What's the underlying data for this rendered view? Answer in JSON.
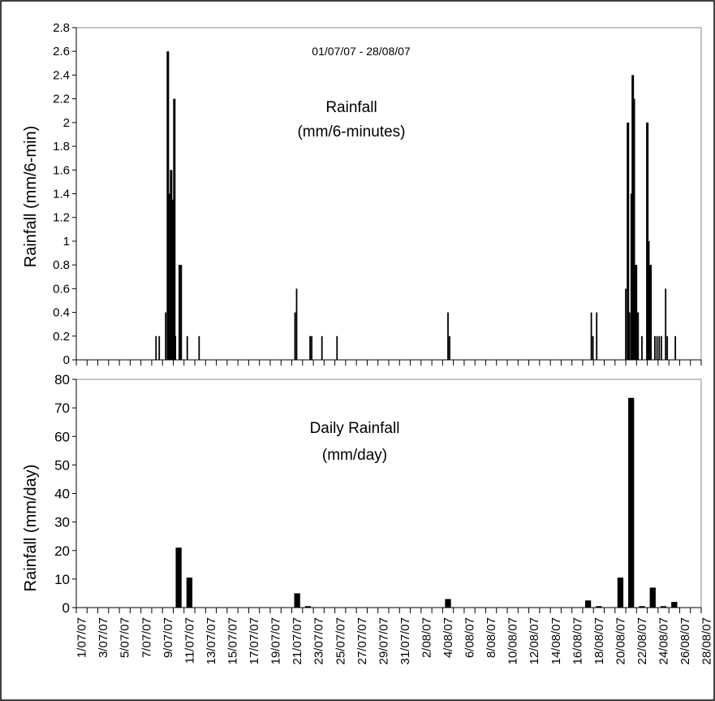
{
  "chart_data": [
    {
      "type": "bar",
      "title": "Rainfall",
      "subtitle": "(mm/6-minutes)",
      "annotation": "01/07/07 - 28/08/07",
      "ylabel": "Rainfall (mm/6-min)",
      "ylim": [
        0,
        2.8
      ],
      "yticks": [
        "0",
        "0.2",
        "0.4",
        "0.6",
        "0.8",
        "1",
        "1.2",
        "1.4",
        "1.6",
        "1.8",
        "2",
        "2.2",
        "2.4",
        "2.6",
        "2.8"
      ],
      "x_unit": "day index (0 = 1/07/07)",
      "xlim": [
        0,
        58
      ],
      "bars": [
        {
          "x": 7.4,
          "y": 0.2
        },
        {
          "x": 7.7,
          "y": 0.2
        },
        {
          "x": 8.3,
          "y": 0.4
        },
        {
          "x": 8.5,
          "y": 2.6
        },
        {
          "x": 8.6,
          "y": 1.4
        },
        {
          "x": 8.7,
          "y": 1.4
        },
        {
          "x": 8.8,
          "y": 1.6
        },
        {
          "x": 8.95,
          "y": 1.35
        },
        {
          "x": 9.1,
          "y": 2.2
        },
        {
          "x": 9.2,
          "y": 0.2
        },
        {
          "x": 9.6,
          "y": 0.8
        },
        {
          "x": 9.7,
          "y": 0.8
        },
        {
          "x": 10.3,
          "y": 0.2
        },
        {
          "x": 11.4,
          "y": 0.2
        },
        {
          "x": 20.3,
          "y": 0.4
        },
        {
          "x": 20.45,
          "y": 0.6
        },
        {
          "x": 21.7,
          "y": 0.2
        },
        {
          "x": 21.85,
          "y": 0.2
        },
        {
          "x": 22.8,
          "y": 0.2
        },
        {
          "x": 24.2,
          "y": 0.2
        },
        {
          "x": 34.5,
          "y": 0.4
        },
        {
          "x": 34.65,
          "y": 0.2
        },
        {
          "x": 47.8,
          "y": 0.4
        },
        {
          "x": 47.95,
          "y": 0.2
        },
        {
          "x": 48.3,
          "y": 0.4
        },
        {
          "x": 51.0,
          "y": 0.6
        },
        {
          "x": 51.2,
          "y": 2.0
        },
        {
          "x": 51.35,
          "y": 0.4
        },
        {
          "x": 51.55,
          "y": 1.4
        },
        {
          "x": 51.65,
          "y": 2.4
        },
        {
          "x": 51.75,
          "y": 2.2
        },
        {
          "x": 51.85,
          "y": 0.6
        },
        {
          "x": 51.95,
          "y": 0.8
        },
        {
          "x": 52.05,
          "y": 0.4
        },
        {
          "x": 52.15,
          "y": 0.4
        },
        {
          "x": 52.5,
          "y": 0.2
        },
        {
          "x": 53.0,
          "y": 2.0
        },
        {
          "x": 53.1,
          "y": 1.0
        },
        {
          "x": 53.2,
          "y": 0.8
        },
        {
          "x": 53.3,
          "y": 0.8
        },
        {
          "x": 53.7,
          "y": 0.2
        },
        {
          "x": 53.9,
          "y": 0.2
        },
        {
          "x": 54.1,
          "y": 0.2
        },
        {
          "x": 54.3,
          "y": 0.2
        },
        {
          "x": 54.7,
          "y": 0.6
        },
        {
          "x": 54.85,
          "y": 0.2
        },
        {
          "x": 55.6,
          "y": 0.2
        }
      ]
    },
    {
      "type": "bar",
      "title": "Daily Rainfall",
      "subtitle": "(mm/day)",
      "ylabel": "Rainfall (mm/day)",
      "ylim": [
        0,
        80
      ],
      "yticks": [
        "0",
        "10",
        "20",
        "30",
        "40",
        "50",
        "60",
        "70",
        "80"
      ],
      "categories": [
        "1/07/07",
        "3/07/07",
        "5/07/07",
        "7/07/07",
        "9/07/07",
        "11/07/07",
        "13/07/07",
        "15/07/07",
        "17/07/07",
        "19/07/07",
        "21/07/07",
        "23/07/07",
        "25/07/07",
        "27/07/07",
        "29/07/07",
        "31/07/07",
        "2/08/07",
        "4/08/07",
        "6/08/07",
        "8/08/07",
        "10/08/07",
        "12/08/07",
        "14/08/07",
        "16/08/07",
        "18/08/07",
        "20/08/07",
        "22/08/07",
        "24/08/07",
        "26/08/07",
        "28/08/07"
      ],
      "bars": [
        {
          "date": "9/07/07",
          "x": 9,
          "y": 21
        },
        {
          "date": "10/07/07",
          "x": 10,
          "y": 10.5
        },
        {
          "date": "21/07/07",
          "x": 20,
          "y": 5
        },
        {
          "date": "22/07/07",
          "x": 21,
          "y": 0.5
        },
        {
          "date": "4/08/07",
          "x": 34,
          "y": 3
        },
        {
          "date": "17/08/07",
          "x": 47,
          "y": 2.5
        },
        {
          "date": "18/08/07",
          "x": 48,
          "y": 0.5
        },
        {
          "date": "20/08/07",
          "x": 50,
          "y": 10.5
        },
        {
          "date": "21/08/07",
          "x": 51,
          "y": 73.5
        },
        {
          "date": "22/08/07",
          "x": 52,
          "y": 0.5
        },
        {
          "date": "23/08/07",
          "x": 53,
          "y": 7
        },
        {
          "date": "24/08/07",
          "x": 54,
          "y": 0.5
        },
        {
          "date": "25/08/07",
          "x": 55,
          "y": 2
        }
      ]
    }
  ]
}
